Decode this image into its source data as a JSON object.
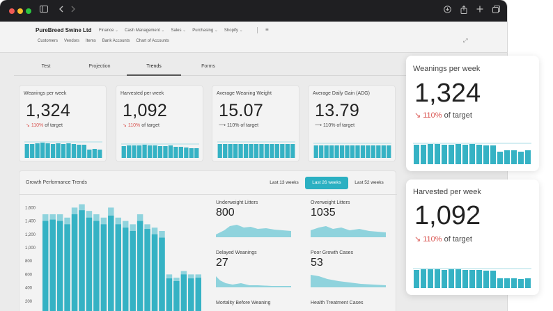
{
  "colors": {
    "accent": "#2bb0c2",
    "bar": "#35b2c4",
    "bar_light": "#8fd3dd",
    "negative": "#d9534f"
  },
  "browser": {
    "icons": [
      "sidebar-icon",
      "back-icon",
      "forward-icon",
      "download-icon",
      "share-icon",
      "new-tab-icon",
      "tabs-icon"
    ]
  },
  "header": {
    "brand": "PureBreed Swine Ltd",
    "nav": [
      "Finance",
      "Cash Management",
      "Sales",
      "Purchasing",
      "Shopify"
    ],
    "subnav": [
      "Customers",
      "Vendors",
      "Items",
      "Bank Accounts",
      "Chart of Accounts"
    ]
  },
  "tabs": [
    "Test",
    "Projection",
    "Trends",
    "Forms"
  ],
  "active_tab": "Trends",
  "kpis": [
    {
      "label": "Weanings per week",
      "value": "1,324",
      "pct": "110%",
      "suffix": "of target",
      "trend": "down"
    },
    {
      "label": "Harvested per week",
      "value": "1,092",
      "pct": "110%",
      "suffix": "of target",
      "trend": "down"
    },
    {
      "label": "Average Weaning Weight",
      "value": "15.07",
      "pct": "110%",
      "suffix": "of target",
      "trend": "flat"
    },
    {
      "label": "Average Daily Gain (ADG)",
      "value": "13.79",
      "pct": "110%",
      "suffix": "of target",
      "trend": "flat"
    }
  ],
  "growth": {
    "title": "Growth Performance Trends",
    "ranges": [
      "Last 13 weeks",
      "Last 26 weeks",
      "Last 52 weeks"
    ],
    "active_range": "Last 26 weeks",
    "minis": [
      {
        "label": "Underweight Litters",
        "value": "800"
      },
      {
        "label": "Overweight Litters",
        "value": "1035"
      },
      {
        "label": "Delayed Weanings",
        "value": "27"
      },
      {
        "label": "Poor Growth Cases",
        "value": "53"
      },
      {
        "label": "Mortality Before Weaning",
        "value": ""
      },
      {
        "label": "Health Treatment Cases",
        "value": ""
      }
    ]
  },
  "chart_data": {
    "type": "bar",
    "yticks": [
      "1,600",
      "1,400",
      "1,200",
      "1,000",
      "800",
      "600",
      "400",
      "200"
    ],
    "ylim": [
      0,
      1700
    ],
    "series": [
      {
        "values": [
          1500,
          1500,
          1500,
          1450,
          1600,
          1650,
          1550,
          1500,
          1450,
          1600,
          1450,
          1400,
          1350,
          1500,
          1350,
          1300,
          1250,
          600,
          550,
          650,
          600,
          600
        ]
      },
      {
        "values": [
          1400,
          1420,
          1400,
          1350,
          1500,
          1560,
          1450,
          1400,
          1350,
          1480,
          1350,
          1300,
          1250,
          1400,
          1280,
          1200,
          1150,
          540,
          500,
          600,
          540,
          550
        ]
      }
    ]
  },
  "floats": [
    {
      "label": "Weanings per week",
      "value": "1,324",
      "pct": "110%",
      "suffix": "of target"
    },
    {
      "label": "Harvested per week",
      "value": "1,092",
      "pct": "110%",
      "suffix": "of target"
    }
  ]
}
